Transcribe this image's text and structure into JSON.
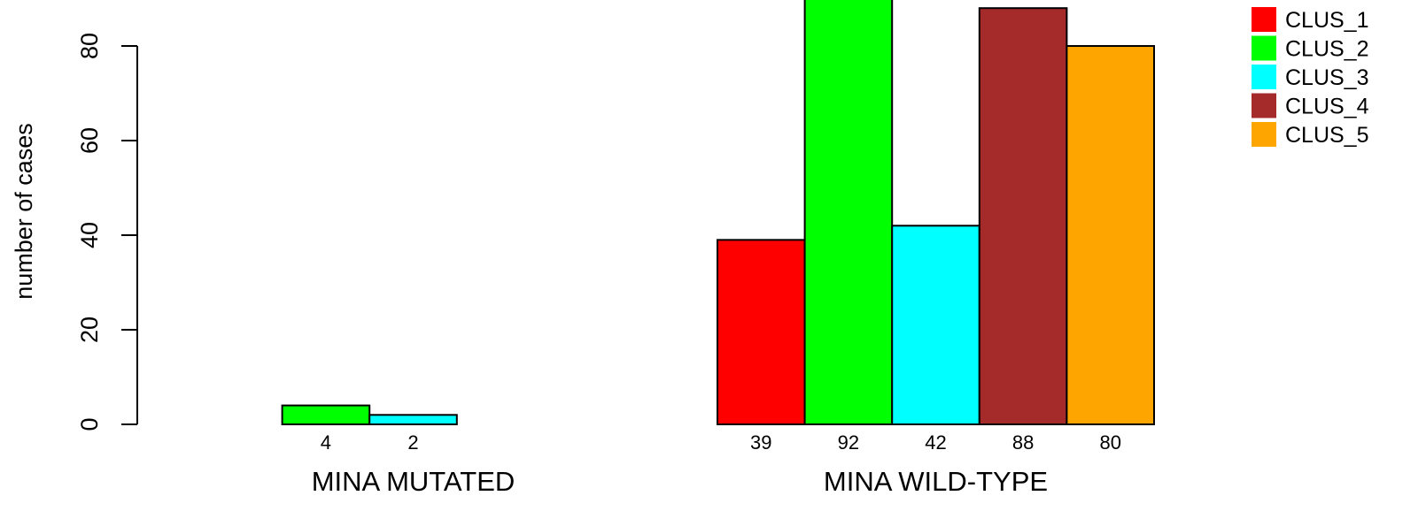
{
  "chart_data": {
    "type": "bar",
    "ylabel": "number of cases",
    "ylim": [
      0,
      92
    ],
    "yticks": [
      0,
      20,
      40,
      60,
      80
    ],
    "grid": false,
    "legend_position": "top-right",
    "groups": [
      {
        "label": "MINA MUTATED",
        "values": [
          0,
          4,
          2,
          0,
          0
        ],
        "value_labels": [
          "",
          "4",
          "2",
          "",
          ""
        ]
      },
      {
        "label": "MINA WILD-TYPE",
        "values": [
          39,
          92,
          42,
          88,
          80
        ],
        "value_labels": [
          "39",
          "92",
          "42",
          "88",
          "80"
        ]
      }
    ],
    "series": [
      {
        "name": "CLUS_1",
        "color": "#FF0000"
      },
      {
        "name": "CLUS_2",
        "color": "#00FF00"
      },
      {
        "name": "CLUS_3",
        "color": "#00FFFF"
      },
      {
        "name": "CLUS_4",
        "color": "#A52A2A"
      },
      {
        "name": "CLUS_5",
        "color": "#FFA500"
      }
    ]
  }
}
